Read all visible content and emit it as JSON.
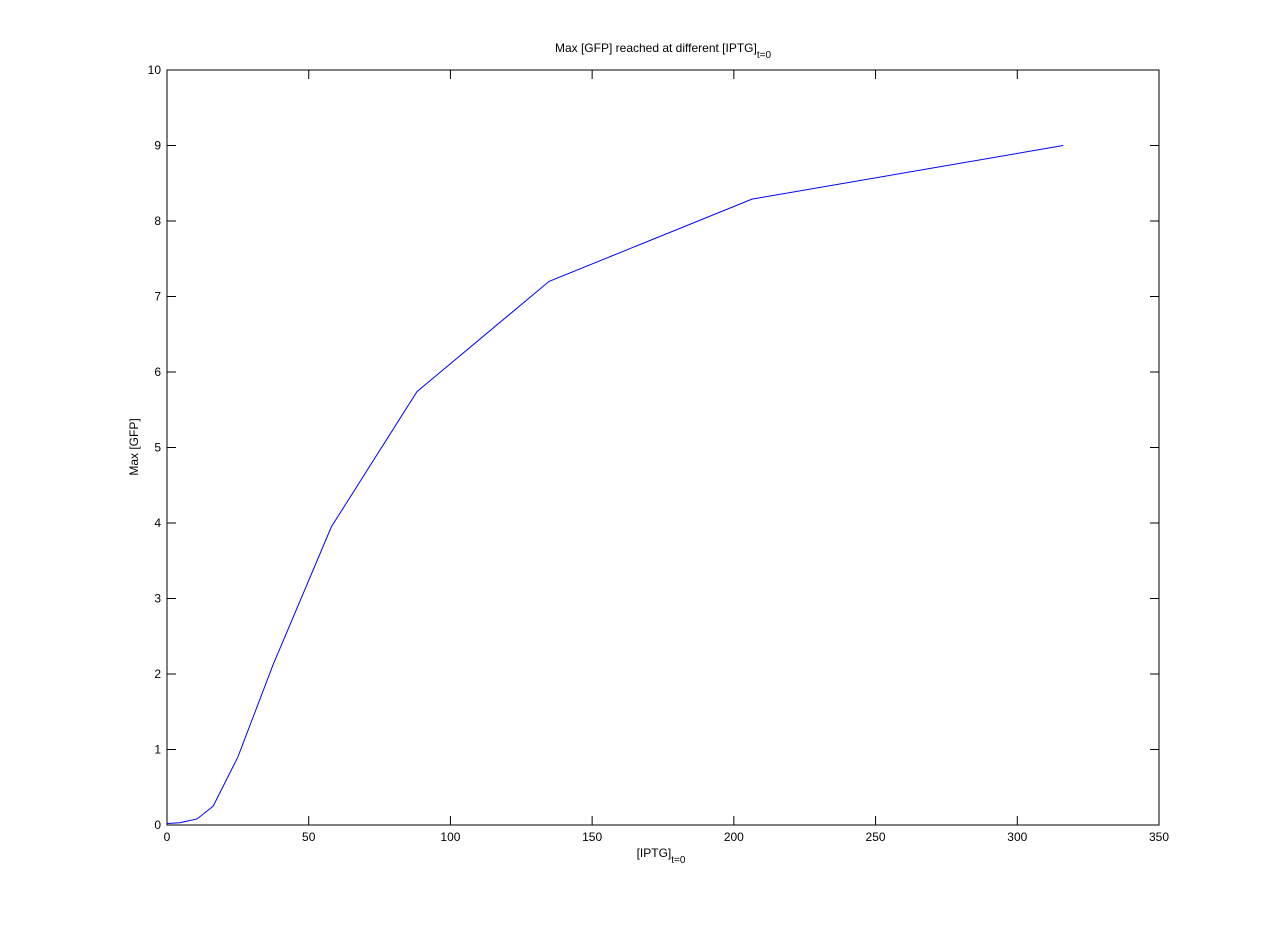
{
  "chart_data": {
    "type": "line",
    "title": {
      "text": "Max [GFP] reached at different [IPTG]",
      "subscript": "t=0"
    },
    "xlabel": {
      "text": "[IPTG]",
      "subscript": "t=0"
    },
    "ylabel": "Max [GFP]",
    "x": [
      0,
      4.5,
      6.9,
      10.6,
      16.3,
      25,
      37.4,
      58,
      88.2,
      134.8,
      206.4,
      316.2
    ],
    "series": [
      {
        "color": "#0000ff",
        "values": [
          0.02,
          0.03,
          0.05,
          0.08,
          0.25,
          0.9,
          2.12,
          3.95,
          5.74,
          7.2,
          8.29,
          9.0
        ]
      }
    ],
    "xlim": [
      0,
      350
    ],
    "xticks": [
      0,
      50,
      100,
      150,
      200,
      250,
      300,
      350
    ],
    "ylim": [
      0,
      10
    ],
    "yticks": [
      0,
      1,
      2,
      3,
      4,
      5,
      6,
      7,
      8,
      9,
      10
    ],
    "grid": false
  }
}
